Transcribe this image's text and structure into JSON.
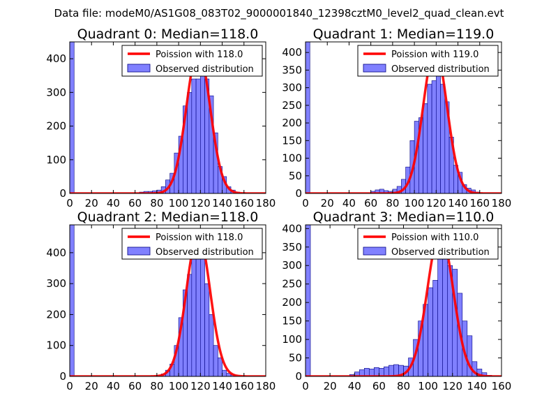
{
  "suptitle": "Data file: modeM0/AS1G08_083T02_9000001840_12398cztM0_level2_quad_clean.evt",
  "colors": {
    "poisson": "#ff0000",
    "hist_fill": "#8080ff",
    "hist_edge": "#000080"
  },
  "chart_data": [
    {
      "type": "bar",
      "title": "Quadrant 0: Median=118.0",
      "legend": {
        "placement": "top-right",
        "entries": [
          "Poission with 118.0",
          "Observed distribution"
        ]
      },
      "xlim": [
        0,
        180
      ],
      "ylim": [
        0,
        450
      ],
      "xticks": [
        0,
        20,
        40,
        60,
        80,
        100,
        120,
        140,
        160,
        180
      ],
      "yticks": [
        0,
        100,
        200,
        300,
        400
      ],
      "bin_width": 4,
      "bins": [
        [
          0,
          450
        ],
        [
          64,
          4
        ],
        [
          68,
          6
        ],
        [
          72,
          6
        ],
        [
          76,
          8
        ],
        [
          80,
          10
        ],
        [
          84,
          20
        ],
        [
          88,
          40
        ],
        [
          92,
          60
        ],
        [
          96,
          120
        ],
        [
          100,
          170
        ],
        [
          104,
          260
        ],
        [
          108,
          300
        ],
        [
          112,
          340
        ],
        [
          116,
          340
        ],
        [
          120,
          380
        ],
        [
          124,
          340
        ],
        [
          128,
          290
        ],
        [
          132,
          180
        ],
        [
          136,
          80
        ],
        [
          140,
          50
        ],
        [
          144,
          20
        ],
        [
          148,
          10
        ],
        [
          152,
          4
        ]
      ],
      "poisson": {
        "lambda": 118.0,
        "peak": 425
      }
    },
    {
      "type": "bar",
      "title": "Quadrant 1: Median=119.0",
      "legend": {
        "placement": "top-right",
        "entries": [
          "Poission with 119.0",
          "Observed distribution"
        ]
      },
      "xlim": [
        0,
        180
      ],
      "ylim": [
        0,
        430
      ],
      "xticks": [
        0,
        20,
        40,
        60,
        80,
        100,
        120,
        140,
        160,
        180
      ],
      "yticks": [
        0,
        50,
        100,
        150,
        200,
        250,
        300,
        350,
        400
      ],
      "bin_width": 4,
      "bins": [
        [
          0,
          430
        ],
        [
          60,
          6
        ],
        [
          64,
          10
        ],
        [
          68,
          12
        ],
        [
          72,
          8
        ],
        [
          76,
          6
        ],
        [
          80,
          12
        ],
        [
          84,
          20
        ],
        [
          88,
          40
        ],
        [
          92,
          75
        ],
        [
          96,
          150
        ],
        [
          100,
          205
        ],
        [
          104,
          215
        ],
        [
          108,
          255
        ],
        [
          112,
          310
        ],
        [
          116,
          320
        ],
        [
          120,
          350
        ],
        [
          124,
          310
        ],
        [
          128,
          260
        ],
        [
          132,
          160
        ],
        [
          136,
          80
        ],
        [
          140,
          60
        ],
        [
          144,
          25
        ],
        [
          148,
          15
        ],
        [
          152,
          10
        ],
        [
          156,
          4
        ]
      ],
      "poisson": {
        "lambda": 119.0,
        "peak": 410
      }
    },
    {
      "type": "bar",
      "title": "Quadrant 2: Median=118.0",
      "legend": {
        "placement": "top-right",
        "entries": [
          "Poission with 118.0",
          "Observed distribution"
        ]
      },
      "xlim": [
        0,
        180
      ],
      "ylim": [
        0,
        490
      ],
      "xticks": [
        0,
        20,
        40,
        60,
        80,
        100,
        120,
        140,
        160,
        180
      ],
      "yticks": [
        0,
        100,
        200,
        300,
        400
      ],
      "bin_width": 4,
      "bins": [
        [
          0,
          490
        ],
        [
          80,
          4
        ],
        [
          84,
          8
        ],
        [
          88,
          20
        ],
        [
          92,
          40
        ],
        [
          96,
          100
        ],
        [
          100,
          190
        ],
        [
          104,
          280
        ],
        [
          108,
          330
        ],
        [
          112,
          410
        ],
        [
          116,
          400
        ],
        [
          120,
          390
        ],
        [
          124,
          300
        ],
        [
          128,
          200
        ],
        [
          132,
          100
        ],
        [
          136,
          60
        ],
        [
          140,
          20
        ],
        [
          144,
          10
        ],
        [
          148,
          5
        ]
      ],
      "poisson": {
        "lambda": 118.0,
        "peak": 460
      }
    },
    {
      "type": "bar",
      "title": "Quadrant 3: Median=110.0",
      "legend": {
        "placement": "top-right",
        "entries": [
          "Poission with 110.0",
          "Observed distribution"
        ]
      },
      "xlim": [
        0,
        160
      ],
      "ylim": [
        0,
        410
      ],
      "xticks": [
        0,
        20,
        40,
        60,
        80,
        100,
        120,
        140,
        160
      ],
      "yticks": [
        0,
        50,
        100,
        150,
        200,
        250,
        300,
        350,
        400
      ],
      "bin_width": 4,
      "bins": [
        [
          0,
          410
        ],
        [
          36,
          5
        ],
        [
          40,
          12
        ],
        [
          44,
          18
        ],
        [
          48,
          22
        ],
        [
          52,
          20
        ],
        [
          56,
          24
        ],
        [
          60,
          22
        ],
        [
          64,
          26
        ],
        [
          68,
          30
        ],
        [
          72,
          32
        ],
        [
          76,
          30
        ],
        [
          80,
          28
        ],
        [
          84,
          50
        ],
        [
          88,
          100
        ],
        [
          92,
          150
        ],
        [
          96,
          195
        ],
        [
          100,
          240
        ],
        [
          104,
          260
        ],
        [
          108,
          330
        ],
        [
          112,
          335
        ],
        [
          116,
          300
        ],
        [
          120,
          290
        ],
        [
          124,
          225
        ],
        [
          128,
          150
        ],
        [
          132,
          110
        ],
        [
          136,
          40
        ],
        [
          140,
          20
        ],
        [
          144,
          10
        ],
        [
          148,
          3
        ]
      ],
      "poisson": {
        "lambda": 110.0,
        "peak": 390
      }
    }
  ]
}
